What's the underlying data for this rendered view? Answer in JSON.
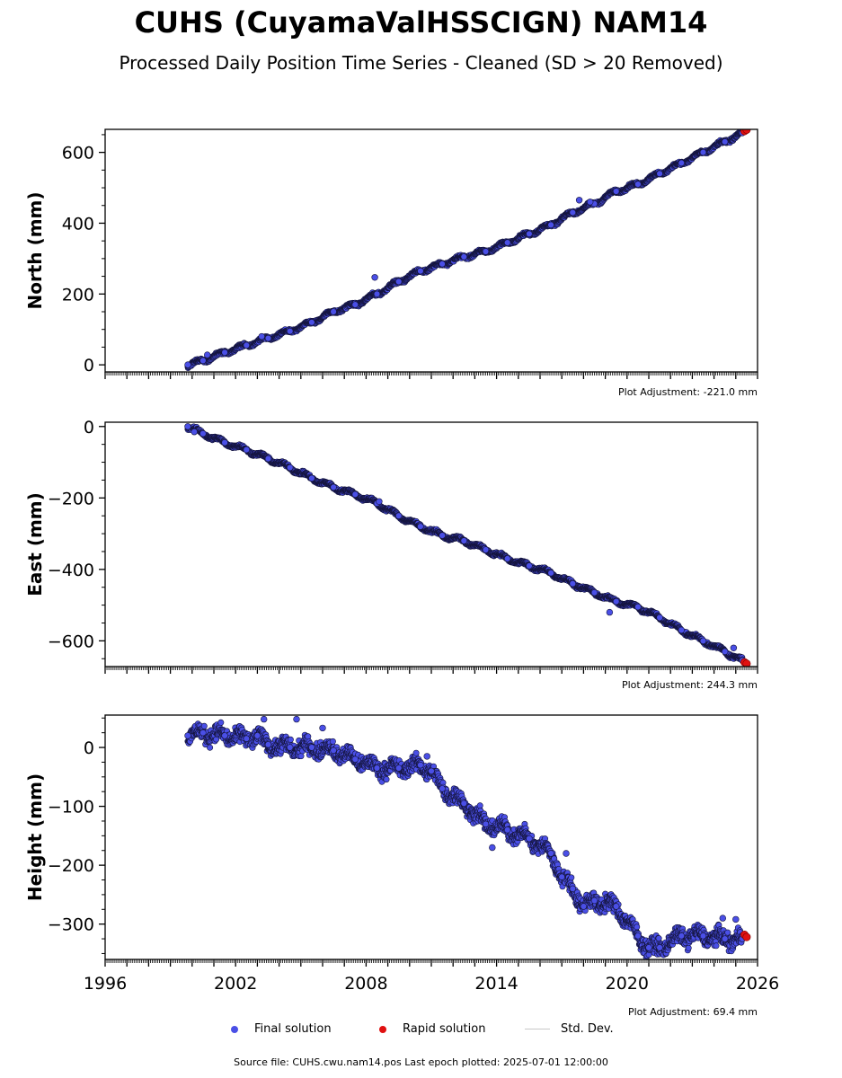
{
  "title": "CUHS (CuyamaValHSSCIGN) NAM14",
  "subtitle": "Processed Daily Position Time Series - Cleaned (SD > 20 Removed)",
  "source_text": "Source file: CUHS.cwu.nam14.pos  Last epoch plotted: 2025-07-01 12:00:00",
  "legend": {
    "final": "Final solution",
    "rapid": "Rapid solution",
    "std": "Std. Dev."
  },
  "colors": {
    "final_fill": "#4a4fe6",
    "final_edge": "#14143c",
    "rapid": "#e01010",
    "std": "#c8c8c8"
  },
  "chart_data": [
    {
      "type": "scatter",
      "ylabel": "North (mm)",
      "xlim": [
        1996,
        2026
      ],
      "ylim": [
        -20,
        665
      ],
      "yticks": [
        0,
        200,
        400,
        600
      ],
      "xticks": [
        1996,
        2002,
        2008,
        2014,
        2020,
        2026
      ],
      "show_xticklabels": false,
      "adjustment": "Plot Adjustment: -221.0 mm",
      "series": [
        {
          "name": "Final solution",
          "x": [
            1999.8,
            2000.5,
            2001.5,
            2002.5,
            2003.5,
            2004.5,
            2005.5,
            2006.5,
            2007.5,
            2008.5,
            2009.5,
            2010.5,
            2011.5,
            2012.5,
            2013.5,
            2014.5,
            2015.5,
            2016.5,
            2017.5,
            2018.5,
            2019.5,
            2020.5,
            2021.5,
            2022.5,
            2023.5,
            2024.5,
            2025.3
          ],
          "y": [
            0,
            12,
            35,
            55,
            75,
            95,
            120,
            150,
            170,
            200,
            235,
            265,
            285,
            305,
            320,
            345,
            370,
            395,
            430,
            455,
            490,
            510,
            540,
            570,
            600,
            630,
            655
          ]
        },
        {
          "name": "Rapid solution",
          "x": [
            2025.4,
            2025.5
          ],
          "y": [
            660,
            664
          ]
        }
      ],
      "outliers": {
        "x": [
          2000.7,
          2003.2,
          2008.4,
          2017.8,
          2018.3
        ],
        "y": [
          28,
          80,
          247,
          465,
          460
        ]
      }
    },
    {
      "type": "scatter",
      "ylabel": "East (mm)",
      "xlim": [
        1996,
        2026
      ],
      "ylim": [
        -672,
        12
      ],
      "yticks": [
        -600,
        -400,
        -200,
        0
      ],
      "xticks": [
        1996,
        2002,
        2008,
        2014,
        2020,
        2026
      ],
      "show_xticklabels": false,
      "adjustment": "Plot Adjustment: 244.3 mm",
      "series": [
        {
          "name": "Final solution",
          "x": [
            1999.8,
            2000.5,
            2001.5,
            2002.5,
            2003.5,
            2004.5,
            2005.5,
            2006.5,
            2007.5,
            2008.5,
            2009.5,
            2010.5,
            2011.5,
            2012.5,
            2013.5,
            2014.5,
            2015.5,
            2016.5,
            2017.5,
            2018.5,
            2019.5,
            2020.5,
            2021.5,
            2022.5,
            2023.5,
            2024.5,
            2025.3
          ],
          "y": [
            0,
            -20,
            -45,
            -65,
            -90,
            -115,
            -145,
            -170,
            -190,
            -215,
            -250,
            -280,
            -305,
            -320,
            -345,
            -370,
            -390,
            -410,
            -440,
            -465,
            -490,
            -505,
            -535,
            -570,
            -600,
            -630,
            -655
          ]
        },
        {
          "name": "Rapid solution",
          "x": [
            2025.4,
            2025.5
          ],
          "y": [
            -660,
            -664
          ]
        }
      ],
      "outliers": {
        "x": [
          2000.1,
          2008.6,
          2019.2,
          2024.9
        ],
        "y": [
          -15,
          -210,
          -520,
          -620
        ]
      }
    },
    {
      "type": "scatter",
      "ylabel": "Height (mm)",
      "xlim": [
        1996,
        2026
      ],
      "ylim": [
        -360,
        55
      ],
      "yticks": [
        -300,
        -200,
        -100,
        0
      ],
      "xticks": [
        1996,
        2002,
        2008,
        2014,
        2020,
        2026
      ],
      "show_xticklabels": true,
      "adjustment": "Plot Adjustment: 69.4 mm",
      "series": [
        {
          "name": "Final solution",
          "x": [
            1999.8,
            2000.5,
            2001.5,
            2002.5,
            2003.0,
            2003.5,
            2004.5,
            2005.5,
            2006.5,
            2007.5,
            2008.5,
            2009.5,
            2010.5,
            2011.0,
            2011.5,
            2012.5,
            2013.5,
            2014.5,
            2015.5,
            2016.5,
            2017.0,
            2017.5,
            2018.0,
            2018.5,
            2019.5,
            2020.5,
            2021.0,
            2021.5,
            2022.5,
            2023.5,
            2024.5,
            2025.3
          ],
          "y": [
            20,
            25,
            20,
            15,
            20,
            5,
            0,
            0,
            -5,
            -20,
            -35,
            -35,
            -30,
            -40,
            -70,
            -95,
            -130,
            -140,
            -155,
            -180,
            -220,
            -240,
            -270,
            -260,
            -270,
            -320,
            -340,
            -340,
            -320,
            -320,
            -325,
            -325
          ]
        },
        {
          "name": "Rapid solution",
          "x": [
            2025.4,
            2025.5
          ],
          "y": [
            -318,
            -322
          ]
        }
      ],
      "outliers": {
        "x": [
          2003.3,
          2004.8,
          2006.0,
          2010.8,
          2013.8,
          2017.2,
          2024.4,
          2025.0
        ],
        "y": [
          48,
          48,
          33,
          -15,
          -170,
          -180,
          -290,
          -292
        ]
      }
    }
  ]
}
